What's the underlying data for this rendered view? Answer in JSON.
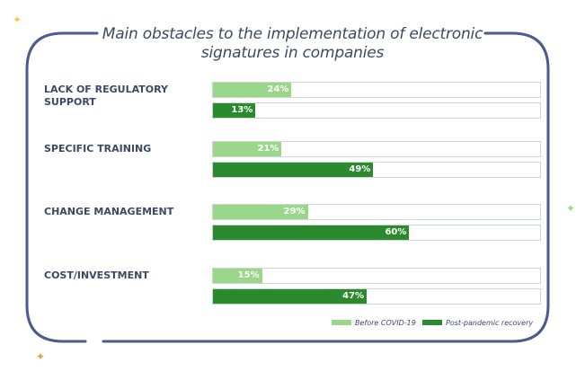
{
  "chart_data": {
    "type": "bar",
    "title_lines": [
      "Main obstacles to the implementation of electronic",
      "signatures in companies"
    ],
    "categories": [
      "LACK OF REGULATORY SUPPORT",
      "SPECIFIC TRAINING",
      "CHANGE MANAGEMENT",
      "COST/INVESTMENT"
    ],
    "series": [
      {
        "name": "Before COVID-19",
        "values": [
          24,
          21,
          29,
          15
        ],
        "labels": [
          "24%",
          "21%",
          "29%",
          "15%"
        ]
      },
      {
        "name": "Post-pandemic recovery",
        "values": [
          13,
          49,
          60,
          47
        ],
        "labels": [
          "13%",
          "49%",
          "60%",
          "47%"
        ]
      }
    ],
    "xlim": [
      0,
      100
    ],
    "orientation": "horizontal",
    "legend_position": "bottom-right"
  },
  "colors": {
    "before": "#9ad78a",
    "post": "#2b8a2e",
    "frame": "#4e5a8f",
    "text": "#3b4a63",
    "track_border": "#cfd6cf",
    "sparkle_yellow": "#f2c94c",
    "sparkle_green": "#9ad78a",
    "sparkle_orange": "#f2994a"
  },
  "decorations": [
    "sparkle-icon",
    "sparkle-icon",
    "sparkle-icon"
  ]
}
